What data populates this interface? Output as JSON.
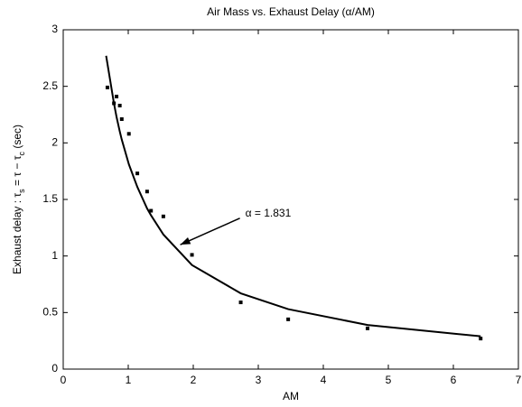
{
  "chart_data": {
    "type": "scatter",
    "title": "Air Mass vs. Exhaust Delay (α/AM)",
    "xlabel": "AM",
    "ylabel": [
      "Exhaust delay : τ",
      "s",
      " = τ − τ",
      "c",
      " (sec)"
    ],
    "points": {
      "color": "#000000",
      "x": [
        0.68,
        0.78,
        0.82,
        0.87,
        0.9,
        1.01,
        1.14,
        1.29,
        1.35,
        1.54,
        1.98,
        2.73,
        3.46,
        4.68,
        6.42
      ],
      "y": [
        2.49,
        2.35,
        2.41,
        2.33,
        2.21,
        2.08,
        1.73,
        1.57,
        1.4,
        1.35,
        1.01,
        0.59,
        0.44,
        0.36,
        0.27
      ]
    },
    "fit": {
      "color": "#000000",
      "x": [
        0.66,
        0.78,
        0.82,
        0.87,
        0.9,
        1.01,
        1.14,
        1.29,
        1.35,
        1.54,
        1.98,
        2.73,
        3.46,
        4.68,
        6.42
      ],
      "y": [
        2.77,
        2.35,
        2.23,
        2.1,
        2.03,
        1.81,
        1.61,
        1.42,
        1.36,
        1.19,
        0.92,
        0.67,
        0.53,
        0.39,
        0.29
      ]
    },
    "annotation": {
      "text": "α = 1.831",
      "xy": [
        1.8,
        1.1
      ],
      "xytext": [
        2.8,
        1.35
      ]
    },
    "xlim": [
      0,
      7
    ],
    "xticks": [
      0,
      1,
      2,
      3,
      4,
      5,
      6,
      7
    ],
    "ylim": [
      0,
      3
    ],
    "yticks": [
      0,
      0.5,
      1,
      1.5,
      2,
      2.5,
      3
    ],
    "grid": false
  }
}
